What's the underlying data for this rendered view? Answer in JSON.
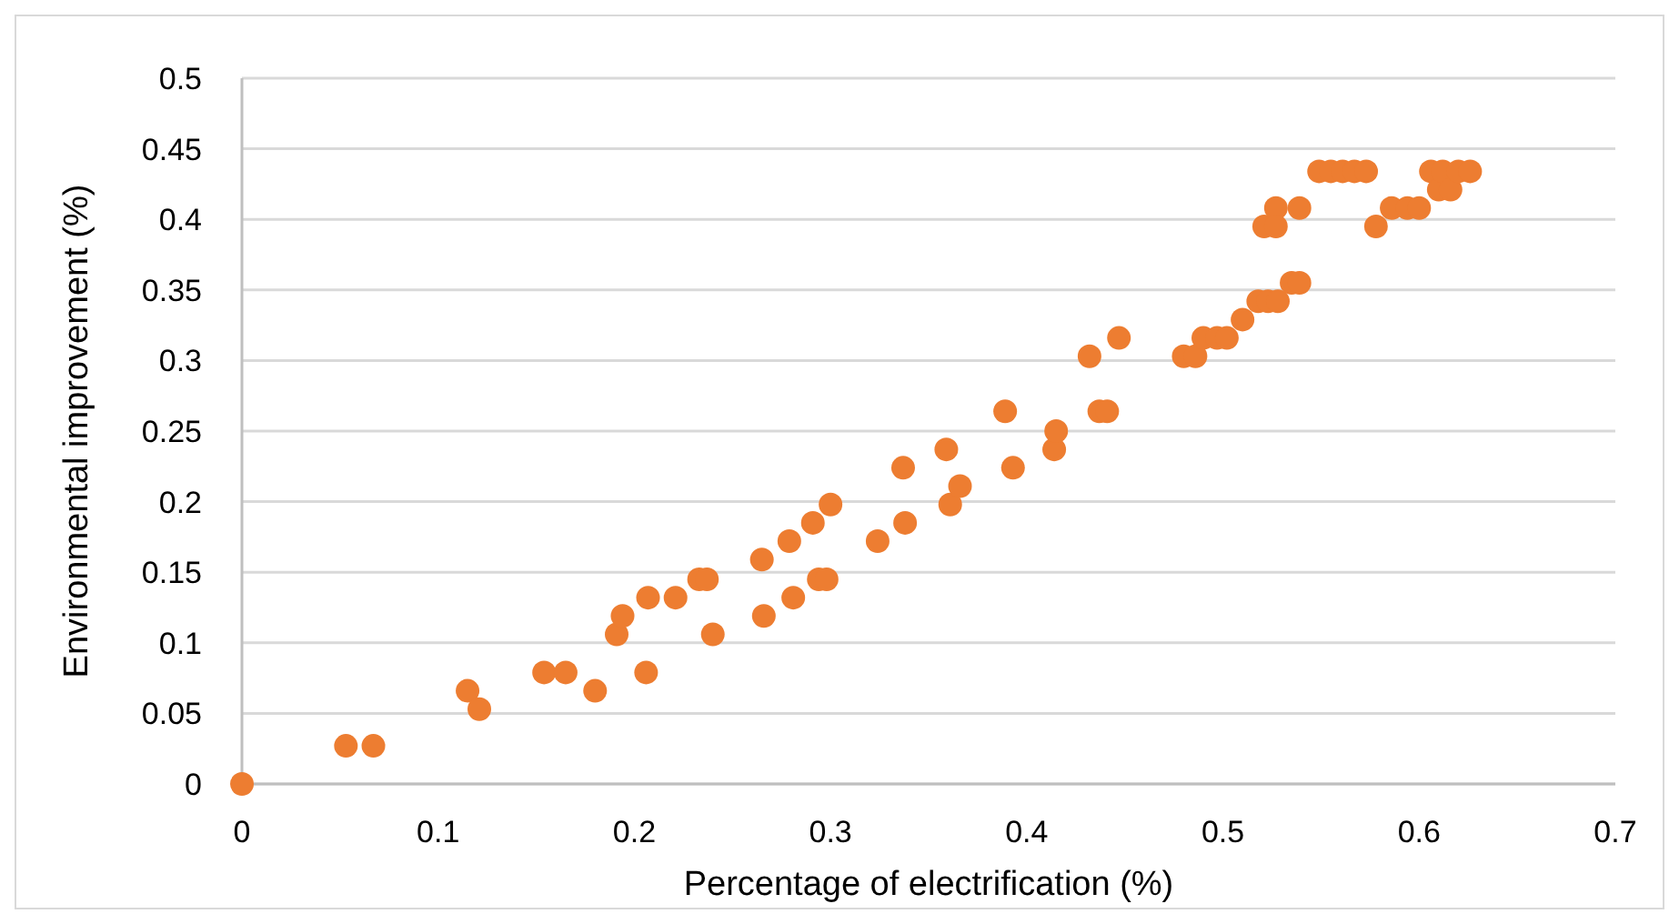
{
  "chart_data": {
    "type": "scatter",
    "xlabel": "Percentage of electrification (%)",
    "ylabel": "Environmental improvement (%)",
    "xlim": [
      0,
      0.7
    ],
    "xticks": [
      0,
      0.1,
      0.2,
      0.3,
      0.4,
      0.5,
      0.6,
      0.7
    ],
    "ylim": [
      0,
      0.5
    ],
    "yticks": [
      0,
      0.05,
      0.1,
      0.15,
      0.2,
      0.25,
      0.3,
      0.35,
      0.4,
      0.45,
      0.5
    ],
    "grid": "y",
    "marker": "circle",
    "series": [
      {
        "color": "#ed7d31",
        "x": [
          0,
          0.053,
          0.067,
          0.115,
          0.121,
          0.154,
          0.165,
          0.18,
          0.191,
          0.194,
          0.206,
          0.207,
          0.221,
          0.233,
          0.237,
          0.24,
          0.265,
          0.266,
          0.279,
          0.281,
          0.291,
          0.294,
          0.298,
          0.3,
          0.324,
          0.337,
          0.338,
          0.359,
          0.361,
          0.366,
          0.389,
          0.393,
          0.414,
          0.415,
          0.432,
          0.437,
          0.441,
          0.447,
          0.48,
          0.486,
          0.49,
          0.497,
          0.502,
          0.51,
          0.518,
          0.523,
          0.528,
          0.535,
          0.539,
          0.521,
          0.527,
          0.527,
          0.539,
          0.549,
          0.555,
          0.561,
          0.567,
          0.573,
          0.578,
          0.586,
          0.594,
          0.6,
          0.606,
          0.61,
          0.612,
          0.616,
          0.62,
          0.626
        ],
        "values": [
          0,
          0.027,
          0.027,
          0.066,
          0.053,
          0.079,
          0.079,
          0.066,
          0.106,
          0.119,
          0.079,
          0.132,
          0.132,
          0.145,
          0.145,
          0.106,
          0.159,
          0.119,
          0.172,
          0.132,
          0.185,
          0.145,
          0.145,
          0.198,
          0.172,
          0.224,
          0.185,
          0.237,
          0.198,
          0.211,
          0.264,
          0.224,
          0.237,
          0.25,
          0.303,
          0.264,
          0.264,
          0.316,
          0.303,
          0.303,
          0.316,
          0.316,
          0.316,
          0.329,
          0.342,
          0.342,
          0.342,
          0.355,
          0.355,
          0.395,
          0.408,
          0.395,
          0.408,
          0.434,
          0.434,
          0.434,
          0.434,
          0.434,
          0.395,
          0.408,
          0.408,
          0.408,
          0.434,
          0.421,
          0.434,
          0.421,
          0.434,
          0.434
        ]
      }
    ]
  }
}
